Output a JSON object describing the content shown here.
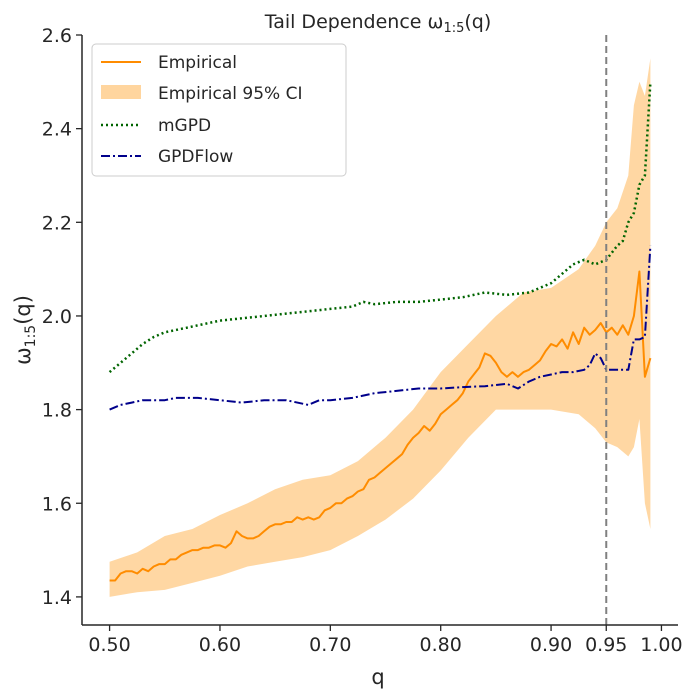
{
  "chart_data": {
    "type": "line",
    "title": "Tail Dependence ω",
    "title_sub": "1:5",
    "title_tail": "(q)",
    "xlabel": "q",
    "ylabel": "ω",
    "ylabel_sub": "1:5",
    "ylabel_tail": "(q)",
    "xlim": [
      0.475,
      1.015
    ],
    "ylim": [
      1.34,
      2.6
    ],
    "xticks": [
      0.5,
      0.6,
      0.7,
      0.8,
      0.9,
      0.95,
      1.0
    ],
    "xtick_labels": [
      "0.50",
      "0.60",
      "0.70",
      "0.80",
      "0.90",
      "0.95",
      "1.00"
    ],
    "yticks": [
      1.4,
      1.6,
      1.8,
      2.0,
      2.2,
      2.4,
      2.6
    ],
    "ytick_labels": [
      "1.4",
      "1.6",
      "1.8",
      "2.0",
      "2.2",
      "2.4",
      "2.6"
    ],
    "vline": {
      "x": 0.95,
      "style": "dashed",
      "color": "#808080"
    },
    "legend": {
      "placement": "top-left",
      "entries": [
        "Empirical",
        "Empirical 95% CI",
        "mGPD",
        "GPDFlow"
      ]
    },
    "series": [
      {
        "name": "Empirical",
        "color": "#ff8c00",
        "style": "solid",
        "x": [
          0.5,
          0.505,
          0.51,
          0.515,
          0.52,
          0.525,
          0.53,
          0.535,
          0.54,
          0.545,
          0.55,
          0.555,
          0.56,
          0.565,
          0.57,
          0.575,
          0.58,
          0.585,
          0.59,
          0.595,
          0.6,
          0.605,
          0.61,
          0.615,
          0.62,
          0.625,
          0.63,
          0.635,
          0.64,
          0.645,
          0.65,
          0.655,
          0.66,
          0.665,
          0.67,
          0.675,
          0.68,
          0.685,
          0.69,
          0.695,
          0.7,
          0.705,
          0.71,
          0.715,
          0.72,
          0.725,
          0.73,
          0.735,
          0.74,
          0.745,
          0.75,
          0.755,
          0.76,
          0.765,
          0.77,
          0.775,
          0.78,
          0.785,
          0.79,
          0.795,
          0.8,
          0.805,
          0.81,
          0.815,
          0.82,
          0.825,
          0.83,
          0.835,
          0.84,
          0.845,
          0.85,
          0.855,
          0.86,
          0.865,
          0.87,
          0.875,
          0.88,
          0.885,
          0.89,
          0.895,
          0.9,
          0.905,
          0.91,
          0.915,
          0.92,
          0.925,
          0.93,
          0.935,
          0.94,
          0.945,
          0.95,
          0.955,
          0.96,
          0.965,
          0.97,
          0.975,
          0.98,
          0.985,
          0.99
        ],
        "values": [
          1.435,
          1.435,
          1.45,
          1.455,
          1.455,
          1.45,
          1.46,
          1.455,
          1.465,
          1.47,
          1.47,
          1.48,
          1.48,
          1.49,
          1.495,
          1.5,
          1.5,
          1.505,
          1.505,
          1.51,
          1.51,
          1.505,
          1.515,
          1.54,
          1.53,
          1.525,
          1.525,
          1.53,
          1.54,
          1.55,
          1.555,
          1.555,
          1.56,
          1.56,
          1.57,
          1.565,
          1.57,
          1.565,
          1.57,
          1.585,
          1.59,
          1.6,
          1.6,
          1.61,
          1.615,
          1.625,
          1.63,
          1.65,
          1.655,
          1.665,
          1.675,
          1.685,
          1.695,
          1.705,
          1.725,
          1.74,
          1.75,
          1.765,
          1.755,
          1.77,
          1.79,
          1.8,
          1.81,
          1.82,
          1.835,
          1.86,
          1.875,
          1.89,
          1.92,
          1.915,
          1.9,
          1.88,
          1.87,
          1.88,
          1.87,
          1.88,
          1.885,
          1.895,
          1.905,
          1.925,
          1.94,
          1.935,
          1.95,
          1.93,
          1.965,
          1.94,
          1.975,
          1.96,
          1.97,
          1.985,
          1.965,
          1.975,
          1.96,
          1.98,
          1.96,
          2.0,
          2.095,
          1.87,
          1.91
        ]
      },
      {
        "name": "Empirical 95% CI",
        "color": "#ffd59e",
        "style": "band",
        "x": [
          0.5,
          0.525,
          0.55,
          0.575,
          0.6,
          0.625,
          0.65,
          0.675,
          0.7,
          0.725,
          0.75,
          0.775,
          0.8,
          0.825,
          0.85,
          0.875,
          0.9,
          0.925,
          0.94,
          0.95,
          0.96,
          0.97,
          0.975,
          0.98,
          0.985,
          0.99
        ],
        "lower": [
          1.4,
          1.41,
          1.415,
          1.43,
          1.445,
          1.465,
          1.475,
          1.485,
          1.5,
          1.53,
          1.565,
          1.61,
          1.67,
          1.74,
          1.8,
          1.8,
          1.8,
          1.79,
          1.76,
          1.73,
          1.72,
          1.7,
          1.72,
          1.78,
          1.6,
          1.545
        ],
        "upper": [
          1.475,
          1.495,
          1.53,
          1.545,
          1.575,
          1.6,
          1.63,
          1.65,
          1.66,
          1.69,
          1.74,
          1.8,
          1.88,
          1.94,
          2.0,
          2.05,
          2.06,
          2.1,
          2.15,
          2.2,
          2.23,
          2.3,
          2.45,
          2.5,
          2.47,
          2.55
        ]
      },
      {
        "name": "mGPD",
        "color": "#006400",
        "style": "dotted",
        "x": [
          0.5,
          0.51,
          0.52,
          0.53,
          0.54,
          0.55,
          0.56,
          0.57,
          0.58,
          0.59,
          0.6,
          0.62,
          0.64,
          0.66,
          0.68,
          0.7,
          0.72,
          0.73,
          0.74,
          0.76,
          0.78,
          0.8,
          0.82,
          0.84,
          0.86,
          0.88,
          0.9,
          0.91,
          0.92,
          0.93,
          0.94,
          0.95,
          0.96,
          0.965,
          0.97,
          0.975,
          0.98,
          0.985,
          0.99
        ],
        "values": [
          1.88,
          1.9,
          1.92,
          1.94,
          1.955,
          1.965,
          1.97,
          1.975,
          1.98,
          1.985,
          1.99,
          1.995,
          2.0,
          2.005,
          2.01,
          2.015,
          2.02,
          2.03,
          2.025,
          2.03,
          2.03,
          2.035,
          2.04,
          2.05,
          2.045,
          2.05,
          2.07,
          2.09,
          2.11,
          2.12,
          2.11,
          2.12,
          2.15,
          2.16,
          2.2,
          2.22,
          2.28,
          2.3,
          2.5
        ]
      },
      {
        "name": "GPDFlow",
        "color": "#00008b",
        "style": "dashdot",
        "x": [
          0.5,
          0.51,
          0.52,
          0.53,
          0.54,
          0.55,
          0.56,
          0.58,
          0.6,
          0.62,
          0.64,
          0.66,
          0.68,
          0.69,
          0.7,
          0.72,
          0.74,
          0.76,
          0.78,
          0.8,
          0.82,
          0.84,
          0.86,
          0.87,
          0.88,
          0.89,
          0.9,
          0.91,
          0.92,
          0.93,
          0.935,
          0.94,
          0.945,
          0.95,
          0.96,
          0.97,
          0.975,
          0.98,
          0.985,
          0.99
        ],
        "values": [
          1.8,
          1.81,
          1.815,
          1.82,
          1.82,
          1.82,
          1.825,
          1.825,
          1.82,
          1.815,
          1.82,
          1.82,
          1.81,
          1.82,
          1.82,
          1.825,
          1.835,
          1.84,
          1.845,
          1.845,
          1.848,
          1.85,
          1.855,
          1.845,
          1.86,
          1.87,
          1.875,
          1.88,
          1.88,
          1.885,
          1.895,
          1.92,
          1.91,
          1.885,
          1.885,
          1.885,
          1.95,
          1.95,
          1.955,
          2.15
        ]
      }
    ]
  }
}
